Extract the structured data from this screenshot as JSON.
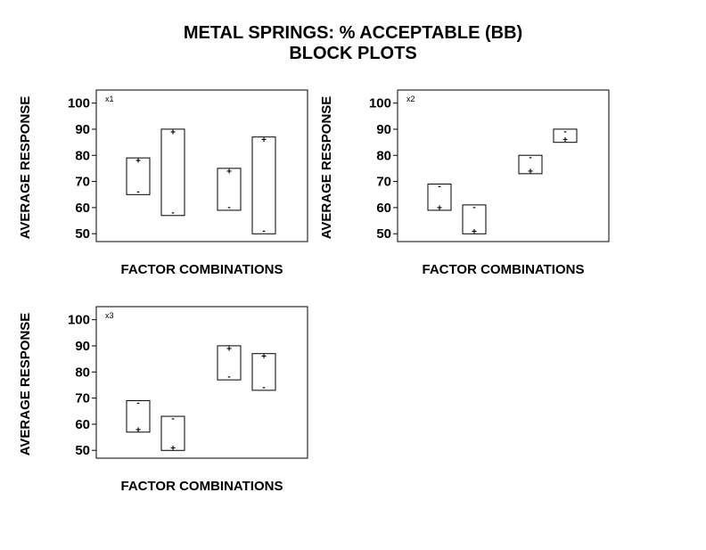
{
  "title": {
    "line1": "METAL SPRINGS: % ACCEPTABLE (BB)",
    "line2": "BLOCK PLOTS"
  },
  "colors": {
    "background": "#ffffff",
    "foreground": "#000000"
  },
  "chart_data": [
    {
      "type": "block",
      "panel_label": "x1",
      "xlabel": "FACTOR COMBINATIONS",
      "ylabel": "AVERAGE RESPONSE",
      "ylim": [
        47,
        105
      ],
      "yticks": [
        50,
        60,
        70,
        80,
        90,
        100
      ],
      "grid": false,
      "blocks": [
        {
          "plus": 78,
          "minus": 66
        },
        {
          "plus": 89,
          "minus": 58
        },
        {
          "plus": 74,
          "minus": 60
        },
        {
          "plus": 86,
          "minus": 51
        }
      ]
    },
    {
      "type": "block",
      "panel_label": "x2",
      "xlabel": "FACTOR COMBINATIONS",
      "ylabel": "AVERAGE RESPONSE",
      "ylim": [
        47,
        105
      ],
      "yticks": [
        50,
        60,
        70,
        80,
        90,
        100
      ],
      "grid": false,
      "blocks": [
        {
          "plus": 60,
          "minus": 68
        },
        {
          "plus": 51,
          "minus": 60
        },
        {
          "plus": 74,
          "minus": 79
        },
        {
          "plus": 86,
          "minus": 89
        }
      ]
    },
    {
      "type": "block",
      "panel_label": "x3",
      "xlabel": "FACTOR COMBINATIONS",
      "ylabel": "AVERAGE RESPONSE",
      "ylim": [
        47,
        105
      ],
      "yticks": [
        50,
        60,
        70,
        80,
        90,
        100
      ],
      "grid": false,
      "blocks": [
        {
          "plus": 58,
          "minus": 68
        },
        {
          "plus": 51,
          "minus": 62
        },
        {
          "plus": 89,
          "minus": 78
        },
        {
          "plus": 86,
          "minus": 74
        }
      ]
    }
  ]
}
